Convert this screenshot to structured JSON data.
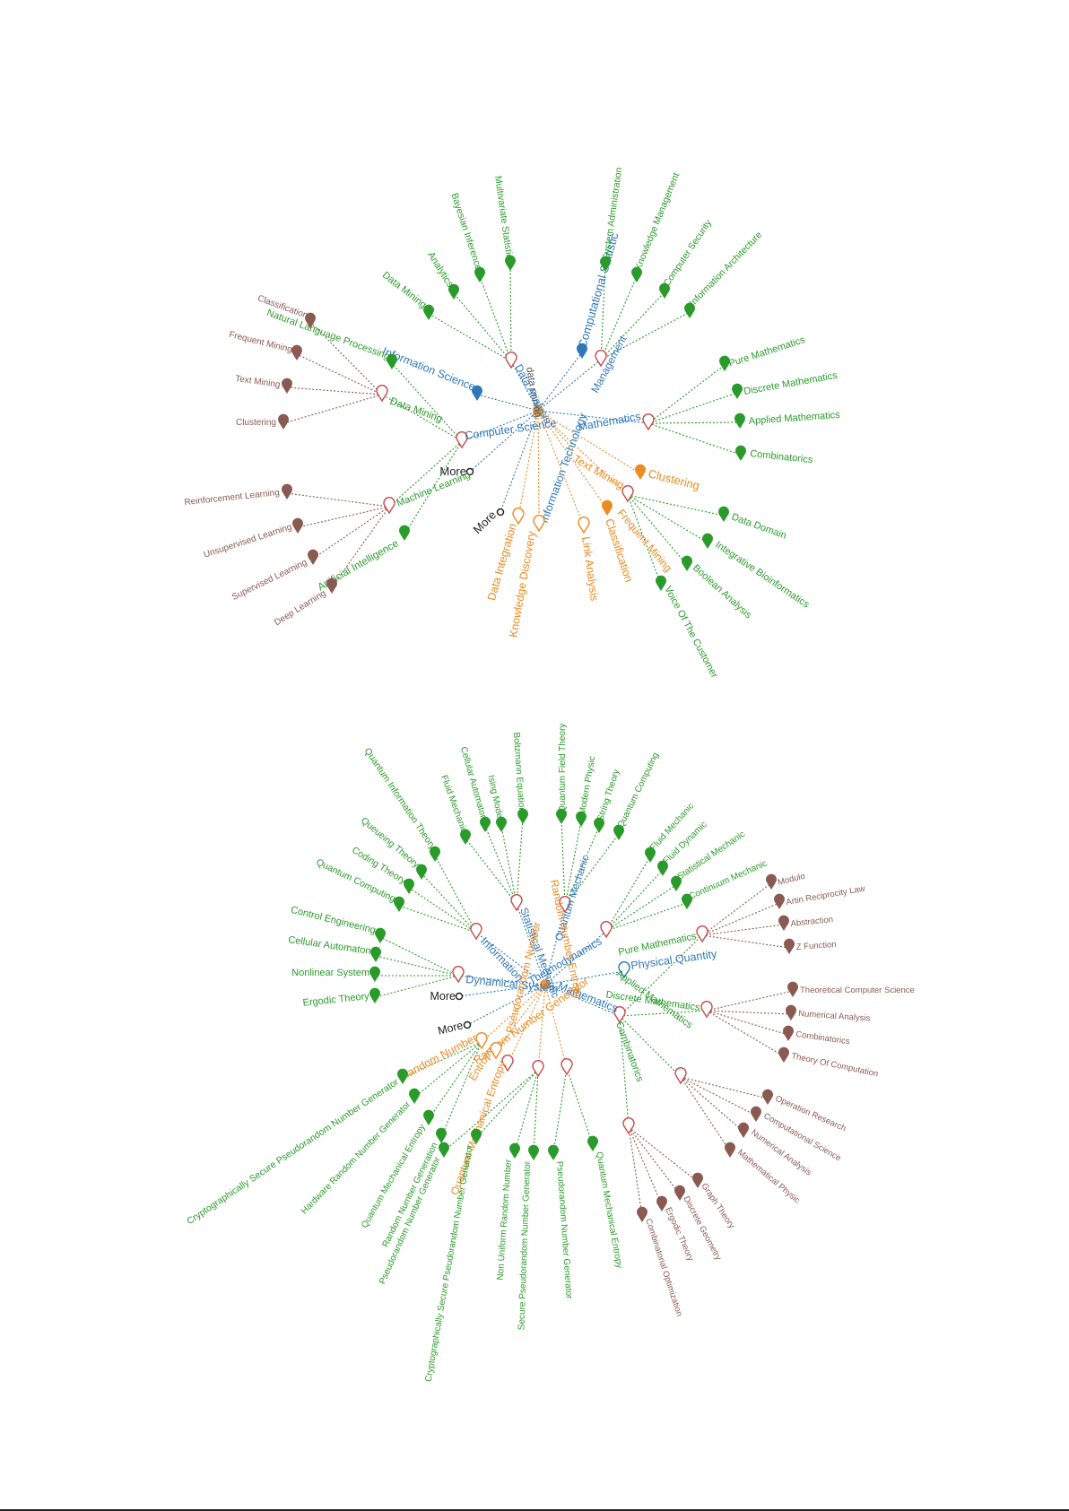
{
  "colors": {
    "blue": "#2f78b8",
    "green": "#2a9b2a",
    "orange": "#ee8a22",
    "brown": "#8a5a52",
    "red_marker": "#c84b4b",
    "black": "#222222"
  },
  "graphs": [
    {
      "name": "data-mining-graph",
      "center_label": "data mining",
      "nodes": [
        {
          "id": "cs",
          "label": "Computer Science",
          "kind": "blue"
        },
        {
          "id": "is",
          "label": "Information Science",
          "kind": "blue"
        },
        {
          "id": "da",
          "label": "Data Analysis",
          "kind": "blue"
        },
        {
          "id": "cst",
          "label": "Computational Statistic",
          "kind": "blue"
        },
        {
          "id": "mg",
          "label": "Management",
          "kind": "blue"
        },
        {
          "id": "math",
          "label": "Mathematics",
          "kind": "blue"
        },
        {
          "id": "it",
          "label": "Information Technology",
          "kind": "blue"
        },
        {
          "id": "more1",
          "label": "More",
          "kind": "black"
        },
        {
          "id": "more2",
          "label": "More",
          "kind": "black"
        },
        {
          "id": "tm",
          "label": "Text Mining",
          "kind": "orange"
        },
        {
          "id": "clu",
          "label": "Clustering",
          "kind": "orange"
        },
        {
          "id": "fm",
          "label": "Frequent Mining",
          "kind": "orange"
        },
        {
          "id": "cla",
          "label": "Classification",
          "kind": "orange"
        },
        {
          "id": "la",
          "label": "Link Analysis",
          "kind": "orange"
        },
        {
          "id": "kd",
          "label": "Knowledge Discovery",
          "kind": "orange"
        },
        {
          "id": "di",
          "label": "Data Integration",
          "kind": "orange"
        },
        {
          "id": "dmc",
          "label": "Data Mining",
          "kind": "green"
        },
        {
          "id": "ml",
          "label": "Machine Learning",
          "kind": "green"
        },
        {
          "id": "ai",
          "label": "Artificial Intelligence",
          "kind": "green"
        },
        {
          "id": "nlp",
          "label": "Natural Language Processing",
          "kind": "green"
        },
        {
          "id": "dm2",
          "label": "Data Mining",
          "kind": "green"
        },
        {
          "id": "an",
          "label": "Analytics",
          "kind": "green"
        },
        {
          "id": "bi",
          "label": "Bayesian Inference",
          "kind": "green"
        },
        {
          "id": "ms",
          "label": "Multivariate Statistic",
          "kind": "green"
        },
        {
          "id": "sa",
          "label": "System Administration",
          "kind": "green"
        },
        {
          "id": "km",
          "label": "Knowledge Management",
          "kind": "green"
        },
        {
          "id": "csec",
          "label": "Computer Security",
          "kind": "green"
        },
        {
          "id": "ia",
          "label": "Information Architecture",
          "kind": "green"
        },
        {
          "id": "pm",
          "label": "Pure Mathematics",
          "kind": "green"
        },
        {
          "id": "dmath",
          "label": "Discrete Mathematics",
          "kind": "green"
        },
        {
          "id": "am",
          "label": "Applied Mathematics",
          "kind": "green"
        },
        {
          "id": "comb",
          "label": "Combinatorics",
          "kind": "green"
        },
        {
          "id": "dd",
          "label": "Data Domain",
          "kind": "green"
        },
        {
          "id": "ib",
          "label": "Integrative Bioinformatics",
          "kind": "green"
        },
        {
          "id": "ba",
          "label": "Boolean Analysis",
          "kind": "green"
        },
        {
          "id": "voc",
          "label": "Voice Of The Customer",
          "kind": "green"
        },
        {
          "id": "c1",
          "label": "Classification",
          "kind": "brown"
        },
        {
          "id": "fm2",
          "label": "Frequent Mining",
          "kind": "brown"
        },
        {
          "id": "tm2",
          "label": "Text Mining",
          "kind": "brown"
        },
        {
          "id": "cl2",
          "label": "Clustering",
          "kind": "brown"
        },
        {
          "id": "rl",
          "label": "Reinforcement Learning",
          "kind": "brown"
        },
        {
          "id": "ul",
          "label": "Unsupervised Learning",
          "kind": "brown"
        },
        {
          "id": "sl",
          "label": "Supervised Learning",
          "kind": "brown"
        },
        {
          "id": "dl",
          "label": "Deep Learning",
          "kind": "brown"
        }
      ]
    },
    {
      "name": "dynamical-system-graph",
      "nodes": [
        {
          "id": "info",
          "label": "Information",
          "kind": "blue"
        },
        {
          "id": "sm",
          "label": "Statistical Mechanic",
          "kind": "blue"
        },
        {
          "id": "qm",
          "label": "Quantum Mechanic",
          "kind": "blue"
        },
        {
          "id": "td",
          "label": "Thermodynamics",
          "kind": "blue"
        },
        {
          "id": "ds",
          "label": "Dynamical System",
          "kind": "blue"
        },
        {
          "id": "pq",
          "label": "Physical Quantity",
          "kind": "blue"
        },
        {
          "id": "math2",
          "label": "Mathematics",
          "kind": "blue"
        },
        {
          "id": "more3",
          "label": "More",
          "kind": "black"
        },
        {
          "id": "more4",
          "label": "More",
          "kind": "black"
        },
        {
          "id": "rng",
          "label": "Random Number Generator",
          "kind": "orange"
        },
        {
          "id": "rn",
          "label": "Random Number",
          "kind": "orange"
        },
        {
          "id": "ent",
          "label": "Entropy",
          "kind": "orange"
        },
        {
          "id": "qme",
          "label": "Quantum Mechanical Entropy",
          "kind": "orange"
        },
        {
          "id": "prn",
          "label": "Pseudorandom Number",
          "kind": "orange"
        },
        {
          "id": "rne",
          "label": "Random Number Entropy",
          "kind": "orange"
        },
        {
          "id": "qit",
          "label": "Quantum Information Theory",
          "kind": "green"
        },
        {
          "id": "qt",
          "label": "Queueing Theory",
          "kind": "green"
        },
        {
          "id": "ct",
          "label": "Coding Theory",
          "kind": "green"
        },
        {
          "id": "qc",
          "label": "Quantum Computing",
          "kind": "green"
        },
        {
          "id": "flm",
          "label": "Fluid Mechanic",
          "kind": "green"
        },
        {
          "id": "ca",
          "label": "Cellular Automaton",
          "kind": "green"
        },
        {
          "id": "im",
          "label": "Ising Model",
          "kind": "green"
        },
        {
          "id": "be",
          "label": "Boltzmann Equation",
          "kind": "green"
        },
        {
          "id": "qft",
          "label": "Quantum Field Theory",
          "kind": "green"
        },
        {
          "id": "mp",
          "label": "Modern Physic",
          "kind": "green"
        },
        {
          "id": "st",
          "label": "String Theory",
          "kind": "green"
        },
        {
          "id": "qc2",
          "label": "Quantum Computing",
          "kind": "green"
        },
        {
          "id": "flm2",
          "label": "Fluid Mechanic",
          "kind": "green"
        },
        {
          "id": "fd",
          "label": "Fluid Dynamic",
          "kind": "green"
        },
        {
          "id": "stm",
          "label": "Statistical Mechanic",
          "kind": "green"
        },
        {
          "id": "cm",
          "label": "Continuum Mechanic",
          "kind": "green"
        },
        {
          "id": "ce",
          "label": "Control Engineering",
          "kind": "green"
        },
        {
          "id": "ca2",
          "label": "Cellular Automaton",
          "kind": "green"
        },
        {
          "id": "ns",
          "label": "Nonlinear System",
          "kind": "green"
        },
        {
          "id": "et",
          "label": "Ergodic Theory",
          "kind": "green"
        },
        {
          "id": "pm2",
          "label": "Pure Mathematics",
          "kind": "green"
        },
        {
          "id": "dm3",
          "label": "Discrete Mathematics",
          "kind": "green"
        },
        {
          "id": "am2",
          "label": "Applied Mathematics",
          "kind": "green"
        },
        {
          "id": "comb2",
          "label": "Combinatorics",
          "kind": "green"
        },
        {
          "id": "cspng",
          "label": "Cryptographically Secure Pseudorandom Number Generator",
          "kind": "green"
        },
        {
          "id": "hrng",
          "label": "Hardware Random Number Generator",
          "kind": "green"
        },
        {
          "id": "qme2",
          "label": "Quantum Mechanical Entropy",
          "kind": "green"
        },
        {
          "id": "rng2",
          "label": "Random Number Generation",
          "kind": "green"
        },
        {
          "id": "prng",
          "label": "Pseudorandom Number Generator",
          "kind": "green"
        },
        {
          "id": "cspng2",
          "label": "Cryptographically Secure Pseudorandom Number Generator",
          "kind": "green"
        },
        {
          "id": "nurn",
          "label": "Non Uniform Random Number",
          "kind": "green"
        },
        {
          "id": "spng",
          "label": "Secure Pseudorandom Number Generator",
          "kind": "green"
        },
        {
          "id": "prng2",
          "label": "Pseudorandom Number Generator",
          "kind": "green"
        },
        {
          "id": "qme3",
          "label": "Quantum Mechanical Entropy",
          "kind": "green"
        },
        {
          "id": "mod",
          "label": "Modulo",
          "kind": "brown"
        },
        {
          "id": "arl",
          "label": "Artin Reciprocity Law",
          "kind": "brown"
        },
        {
          "id": "abs",
          "label": "Abstraction",
          "kind": "brown"
        },
        {
          "id": "zf",
          "label": "Z Function",
          "kind": "brown"
        },
        {
          "id": "tcs",
          "label": "Theoretical Computer Science",
          "kind": "brown"
        },
        {
          "id": "na",
          "label": "Numerical Analysis",
          "kind": "brown"
        },
        {
          "id": "comb3",
          "label": "Combinatorics",
          "kind": "brown"
        },
        {
          "id": "toc",
          "label": "Theory Of Computation",
          "kind": "brown"
        },
        {
          "id": "or",
          "label": "Operation Research",
          "kind": "brown"
        },
        {
          "id": "cs2",
          "label": "Computational Science",
          "kind": "brown"
        },
        {
          "id": "na2",
          "label": "Numerical Analysis",
          "kind": "brown"
        },
        {
          "id": "mphys",
          "label": "Mathematical Physic",
          "kind": "brown"
        },
        {
          "id": "gt",
          "label": "Graph Theory",
          "kind": "brown"
        },
        {
          "id": "dg",
          "label": "Discrete Geometry",
          "kind": "brown"
        },
        {
          "id": "erg",
          "label": "Ergodic Theory",
          "kind": "brown"
        },
        {
          "id": "co",
          "label": "Combinatorial Optimization",
          "kind": "brown"
        }
      ]
    }
  ]
}
